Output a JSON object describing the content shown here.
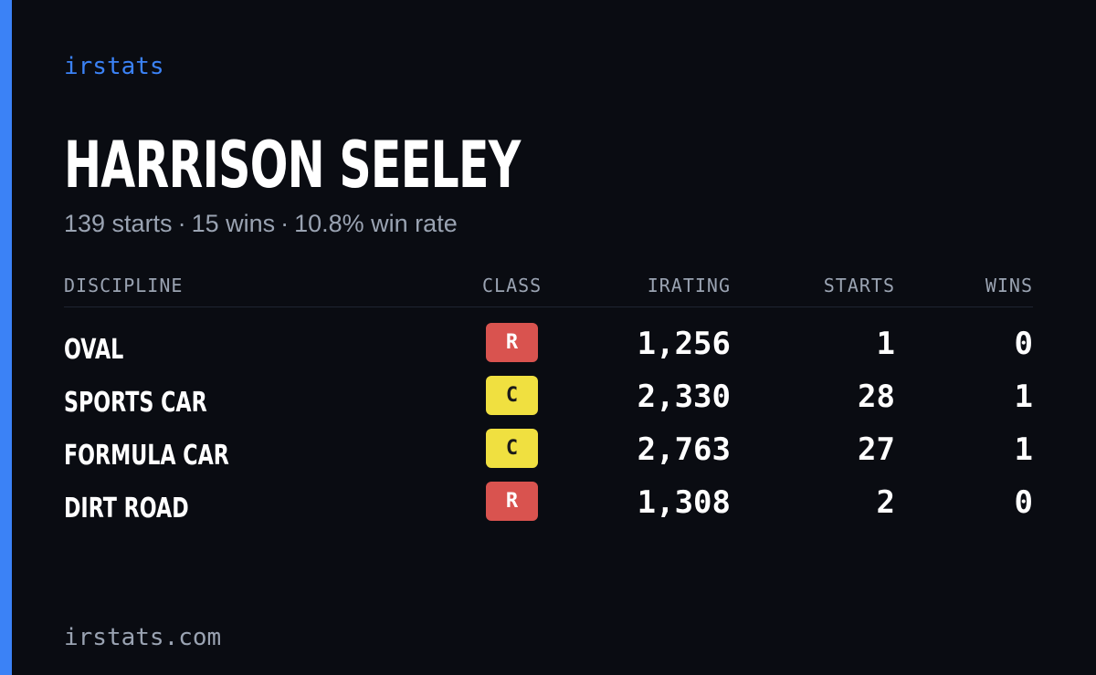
{
  "brand": "irstats",
  "driver": {
    "name": "HARRISON SEELEY",
    "starts_text": "139 starts",
    "wins_text": "15 wins",
    "win_rate_text": "10.8% win rate",
    "separator": "·"
  },
  "table": {
    "headers": {
      "discipline": "DISCIPLINE",
      "class": "CLASS",
      "irating": "IRATING",
      "starts": "STARTS",
      "wins": "WINS"
    },
    "rows": [
      {
        "discipline": "OVAL",
        "class": "R",
        "irating": "1,256",
        "starts": "1",
        "wins": "0"
      },
      {
        "discipline": "SPORTS CAR",
        "class": "C",
        "irating": "2,330",
        "starts": "28",
        "wins": "1"
      },
      {
        "discipline": "FORMULA CAR",
        "class": "C",
        "irating": "2,763",
        "starts": "27",
        "wins": "1"
      },
      {
        "discipline": "DIRT ROAD",
        "class": "R",
        "irating": "1,308",
        "starts": "2",
        "wins": "0"
      }
    ]
  },
  "footer": "irstats.com",
  "colors": {
    "accent": "#3b82f6",
    "background": "#0a0c12",
    "class_r": "#d9534f",
    "class_c": "#f0e040"
  }
}
